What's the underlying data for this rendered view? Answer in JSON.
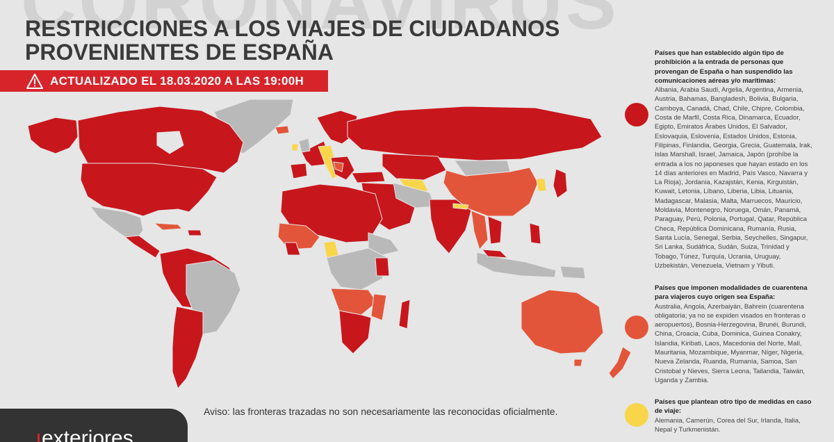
{
  "header": {
    "background_word": "CORONAVIRUS",
    "title": "RESTRICCIONES A LOS VIAJES DE CIUDADANOS PROVENIENTES DE ESPAÑA",
    "update_label": "ACTUALIZADO EL 18.03.2020 A LAS 19:00H"
  },
  "map": {
    "notice": "Aviso: las fronteras trazadas no son necesariamente las reconocidas oficialmente.",
    "colors": {
      "prohibition": "#c8161d",
      "quarantine": "#e3553a",
      "other": "#f9d54a",
      "none": "#b9b9b9",
      "sea": "#e6e6e6"
    }
  },
  "legend": [
    {
      "category": "prohibition",
      "color": "#c8161d",
      "heading": "Países que han establecido algún tipo de prohibición a la entrada de personas que provengan de España o han suspendido las comunicaciones aéreas y/o marítimas:",
      "countries": "Albania, Arabia Saudí, Argelia, Argentina, Armenia, Austria, Bahamas, Bangladesh, Bolivia, Bulgaria, Camboya, Canadá, Chad, Chile, Chipre, Colombia, Costa de Marfil, Costa Rica, Dinamarca, Ecuador, Egipto, Emiratos Árabes Unidos, El Salvador, Eslovaquia, Eslovenia, Estados Unidos, Estonia, Filipinas, Finlandia, Georgia, Grecia, Guatemala, Irak, Islas Marshall, Israel, Jamaica, Japón (prohíbe la entrada a los no japoneses que hayan estado en los 14 días anteriores en Madrid, País Vasco, Navarra y La Rioja), Jordania, Kazajstán, Kenia, Kirguistán, Kuwait, Letonia, Líbano, Liberia, Libia, Lituania, Madagascar, Malasia, Malta, Marruecos, Mauricio, Moldavia, Montenegro, Noruega, Omán, Panamá, Paraguay, Perú, Polonia, Portugal, Qatar, República Checa, República Dominicana, Rumanía, Rusia, Santa Lucía, Senegal, Serbia, Seychelles, Singapur, Sri Lanka, Sudáfrica, Sudán, Suiza, Trinidad y Tobago, Túnez, Turquía, Ucrania, Uruguay, Uzbekistán, Venezuela, Vietnam y Yibuti."
    },
    {
      "category": "quarantine",
      "color": "#e3553a",
      "heading": "Países que imponen modalidades de cuarentena para viajeros cuyo origen sea España:",
      "countries": "Australia, Angola, Azerbaiyán, Bahrein (cuarentena obligatoria; ya no se expiden visados en fronteras o aeropuertos), Bosnia-Herzegovina, Brunéi, Burundi, China, Croacia, Cuba, Dominica, Guinea Conakry, Islandia, Kiribati, Laos, Macedonia del Norte, Malí, Mauritania, Mozambique, Myanmar, Níger, Nigeria, Nueva Zelanda, Ruanda, Rumanía, Samoa, San Cristobal y Nieves, Sierra Leona, Tailandia, Taiwán, Uganda y Zambia."
    },
    {
      "category": "other",
      "color": "#f9d54a",
      "heading": "Países que plantean otro tipo de medidas en caso de viaje:",
      "countries": "Alemania, Camerún, Corea del Sur, Irlanda, Italia, Nepal y Turkmenistán."
    }
  ],
  "brand": {
    "logo_text": "exteriores"
  }
}
